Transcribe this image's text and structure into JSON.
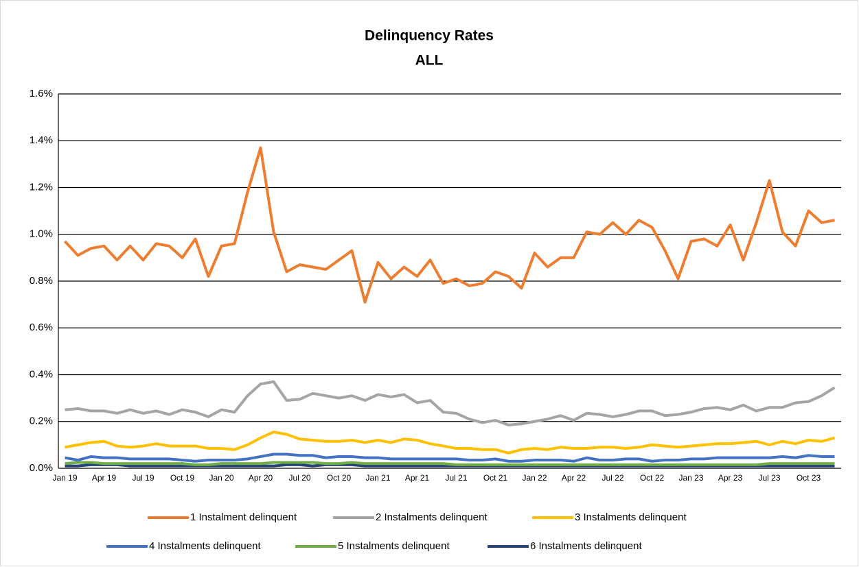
{
  "chart_data": {
    "type": "line",
    "title": "Delinquency Rates",
    "subtitle": "ALL",
    "categories": [
      "Jan 19",
      null,
      null,
      "Apr 19",
      null,
      null,
      "Jul 19",
      null,
      null,
      "Oct 19",
      null,
      null,
      "Jan 20",
      null,
      null,
      "Apr 20",
      null,
      null,
      "Jul 20",
      null,
      null,
      "Oct 20",
      null,
      null,
      "Jan 21",
      null,
      null,
      "Apr 21",
      null,
      null,
      "Jul 21",
      null,
      null,
      "Oct 21",
      null,
      null,
      "Jan 22",
      null,
      null,
      "Apr 22",
      null,
      null,
      "Jul 22",
      null,
      null,
      "Oct 22",
      null,
      null,
      "Jan 23",
      null,
      null,
      "Apr 23",
      null,
      null,
      "Jul 23",
      null,
      null,
      "Oct 23",
      null,
      null
    ],
    "series": [
      {
        "name": "1 Instalment delinquent",
        "color": "#ED7D31",
        "values": [
          0.97,
          0.91,
          0.94,
          0.95,
          0.89,
          0.95,
          0.89,
          0.96,
          0.95,
          0.9,
          0.98,
          0.82,
          0.95,
          0.96,
          1.18,
          1.37,
          1.01,
          0.84,
          0.87,
          0.86,
          0.85,
          0.89,
          0.93,
          0.71,
          0.88,
          0.81,
          0.86,
          0.82,
          0.89,
          0.79,
          0.81,
          0.78,
          0.79,
          0.84,
          0.82,
          0.77,
          0.92,
          0.86,
          0.9,
          0.9,
          1.01,
          1.0,
          1.05,
          1.0,
          1.06,
          1.03,
          0.93,
          0.81,
          0.97,
          0.98,
          0.95,
          1.04,
          0.89,
          1.05,
          1.23,
          1.01,
          0.95,
          1.1,
          1.05,
          1.06
        ]
      },
      {
        "name": "2 Instalments delinquent",
        "color": "#A5A5A5",
        "values": [
          0.25,
          0.255,
          0.245,
          0.245,
          0.235,
          0.25,
          0.235,
          0.245,
          0.23,
          0.25,
          0.24,
          0.22,
          0.25,
          0.24,
          0.31,
          0.36,
          0.37,
          0.29,
          0.295,
          0.32,
          0.31,
          0.3,
          0.31,
          0.29,
          0.315,
          0.305,
          0.315,
          0.28,
          0.29,
          0.24,
          0.235,
          0.21,
          0.195,
          0.205,
          0.185,
          0.19,
          0.2,
          0.21,
          0.225,
          0.205,
          0.235,
          0.23,
          0.22,
          0.23,
          0.245,
          0.245,
          0.225,
          0.23,
          0.24,
          0.255,
          0.26,
          0.25,
          0.27,
          0.245,
          0.26,
          0.26,
          0.28,
          0.285,
          0.31,
          0.345
        ]
      },
      {
        "name": "3 Instalments delinquent",
        "color": "#FFC000",
        "values": [
          0.09,
          0.1,
          0.11,
          0.115,
          0.095,
          0.09,
          0.095,
          0.105,
          0.095,
          0.095,
          0.095,
          0.085,
          0.085,
          0.08,
          0.1,
          0.13,
          0.155,
          0.145,
          0.125,
          0.12,
          0.115,
          0.115,
          0.12,
          0.11,
          0.12,
          0.11,
          0.125,
          0.12,
          0.105,
          0.095,
          0.085,
          0.085,
          0.08,
          0.08,
          0.065,
          0.08,
          0.085,
          0.08,
          0.09,
          0.085,
          0.085,
          0.09,
          0.09,
          0.085,
          0.09,
          0.1,
          0.095,
          0.09,
          0.095,
          0.1,
          0.105,
          0.105,
          0.11,
          0.115,
          0.1,
          0.115,
          0.105,
          0.12,
          0.115,
          0.13
        ]
      },
      {
        "name": "4 Instalments delinquent",
        "color": "#4472C4",
        "values": [
          0.045,
          0.035,
          0.05,
          0.045,
          0.045,
          0.04,
          0.04,
          0.04,
          0.04,
          0.035,
          0.03,
          0.035,
          0.035,
          0.035,
          0.04,
          0.05,
          0.06,
          0.06,
          0.055,
          0.055,
          0.045,
          0.05,
          0.05,
          0.045,
          0.045,
          0.04,
          0.04,
          0.04,
          0.04,
          0.04,
          0.04,
          0.035,
          0.035,
          0.04,
          0.03,
          0.03,
          0.035,
          0.035,
          0.035,
          0.03,
          0.045,
          0.035,
          0.035,
          0.04,
          0.04,
          0.03,
          0.035,
          0.035,
          0.04,
          0.04,
          0.045,
          0.045,
          0.045,
          0.045,
          0.045,
          0.05,
          0.045,
          0.055,
          0.05,
          0.05
        ]
      },
      {
        "name": "5 Instalments delinquent",
        "color": "#70AD47",
        "values": [
          0.02,
          0.025,
          0.025,
          0.02,
          0.02,
          0.02,
          0.02,
          0.02,
          0.02,
          0.02,
          0.015,
          0.015,
          0.02,
          0.02,
          0.02,
          0.02,
          0.025,
          0.025,
          0.025,
          0.025,
          0.02,
          0.02,
          0.025,
          0.02,
          0.02,
          0.02,
          0.02,
          0.02,
          0.02,
          0.02,
          0.015,
          0.015,
          0.015,
          0.015,
          0.015,
          0.015,
          0.015,
          0.015,
          0.015,
          0.015,
          0.015,
          0.015,
          0.015,
          0.015,
          0.015,
          0.015,
          0.015,
          0.015,
          0.015,
          0.015,
          0.015,
          0.015,
          0.015,
          0.015,
          0.02,
          0.02,
          0.02,
          0.02,
          0.02,
          0.02
        ]
      },
      {
        "name": "6 Instalments delinquent",
        "color": "#264478",
        "values": [
          0.01,
          0.01,
          0.015,
          0.015,
          0.015,
          0.01,
          0.01,
          0.01,
          0.01,
          0.01,
          0.01,
          0.01,
          0.01,
          0.01,
          0.01,
          0.01,
          0.01,
          0.015,
          0.015,
          0.01,
          0.015,
          0.015,
          0.015,
          0.01,
          0.01,
          0.01,
          0.01,
          0.01,
          0.01,
          0.01,
          0.01,
          0.01,
          0.01,
          0.01,
          0.01,
          0.01,
          0.01,
          0.01,
          0.01,
          0.01,
          0.01,
          0.01,
          0.01,
          0.01,
          0.01,
          0.01,
          0.01,
          0.01,
          0.01,
          0.01,
          0.01,
          0.01,
          0.01,
          0.01,
          0.01,
          0.01,
          0.01,
          0.01,
          0.01,
          0.01
        ]
      }
    ],
    "ylim": [
      0,
      1.6
    ],
    "yticks": [
      {
        "value": 0,
        "label": "0.0%"
      },
      {
        "value": 0.2,
        "label": "0.2%"
      },
      {
        "value": 0.4,
        "label": "0.4%"
      },
      {
        "value": 0.6,
        "label": "0.6%"
      },
      {
        "value": 0.8,
        "label": "0.8%"
      },
      {
        "value": 1.0,
        "label": "1.0%"
      },
      {
        "value": 1.2,
        "label": "1.2%"
      },
      {
        "value": 1.4,
        "label": "1.4%"
      },
      {
        "value": 1.6,
        "label": "1.6%"
      }
    ],
    "grid": true,
    "legend": "bottom"
  }
}
